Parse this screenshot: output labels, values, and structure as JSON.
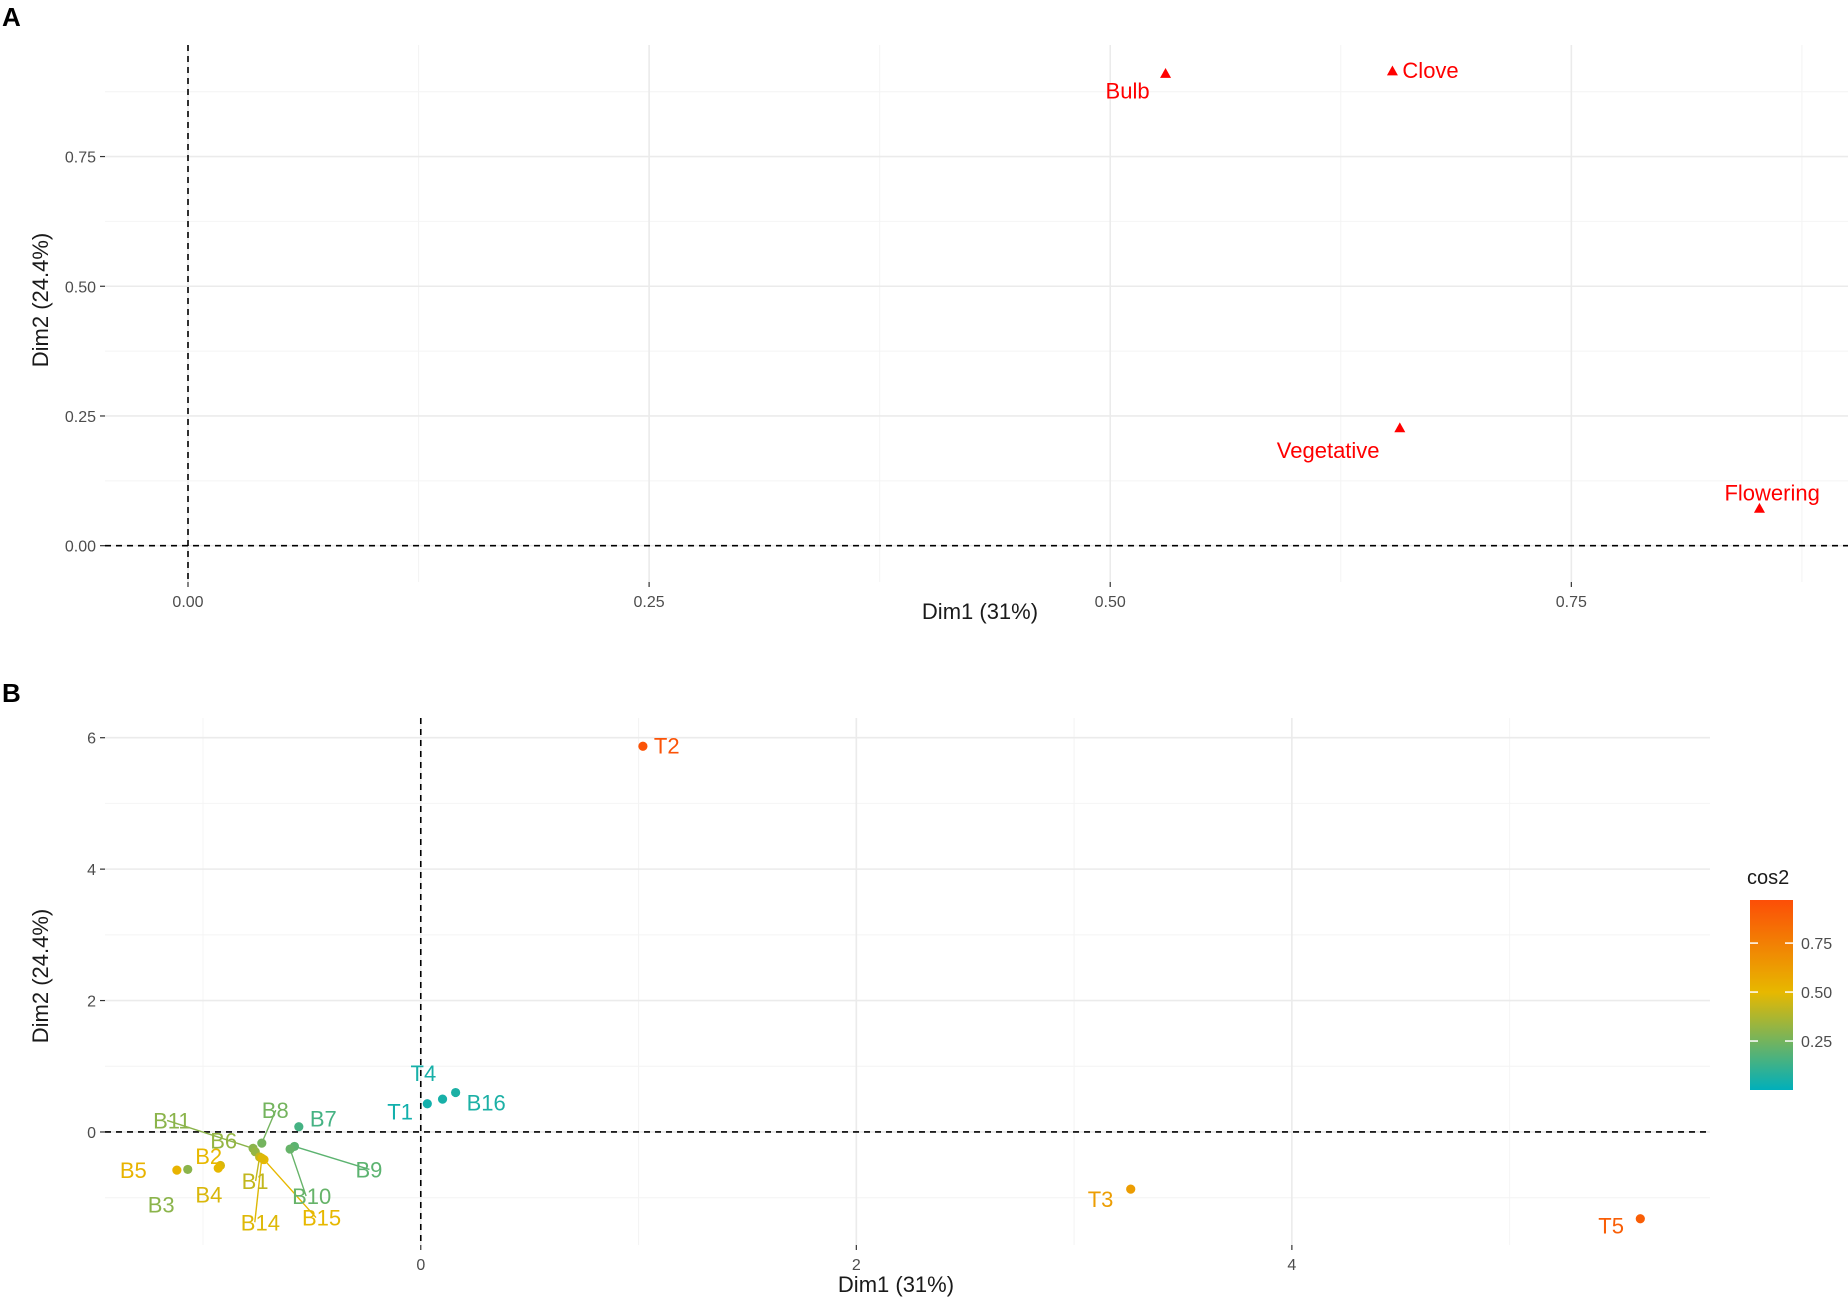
{
  "chart_data": [
    {
      "panel": "A",
      "type": "scatter",
      "title": "",
      "xlabel": "Dim1 (31%)",
      "ylabel": "Dim2 (24.4%)",
      "xlim": [
        -0.045,
        0.9
      ],
      "ylim": [
        -0.07,
        0.965
      ],
      "xticks": [
        0.0,
        0.25,
        0.5,
        0.75
      ],
      "xtick_labels": [
        "0.00",
        "0.25",
        "0.50",
        "0.75"
      ],
      "yticks": [
        0.0,
        0.25,
        0.5,
        0.75
      ],
      "ytick_labels": [
        "0.00",
        "0.25",
        "0.50",
        "0.75"
      ],
      "grid": true,
      "point_color": "#ff0000",
      "marker": "triangle",
      "points": [
        {
          "label": "Bulb",
          "x": 0.53,
          "y": 0.91
        },
        {
          "label": "Clove",
          "x": 0.653,
          "y": 0.915
        },
        {
          "label": "Vegetative",
          "x": 0.657,
          "y": 0.227
        },
        {
          "label": "Flowering",
          "x": 0.852,
          "y": 0.072
        }
      ]
    },
    {
      "panel": "B",
      "type": "scatter",
      "title": "",
      "xlabel": "Dim1 (31%)",
      "ylabel": "Dim2 (24.4%)",
      "xlim": [
        -1.45,
        5.92
      ],
      "ylim": [
        -1.72,
        6.3
      ],
      "xticks": [
        0,
        2,
        4
      ],
      "xtick_labels": [
        "0",
        "2",
        "4"
      ],
      "yticks": [
        0,
        2,
        4,
        6
      ],
      "ytick_labels": [
        "0",
        "2",
        "4",
        "6"
      ],
      "grid": true,
      "color_scale": {
        "title": "cos2",
        "range": [
          0.0,
          0.97
        ],
        "stops": [
          {
            "value": 0.0,
            "color": "#00afbb"
          },
          {
            "value": 0.5,
            "color": "#e7b800"
          },
          {
            "value": 0.97,
            "color": "#fc4e07"
          }
        ],
        "ticks": [
          0.25,
          0.5,
          0.75
        ],
        "tick_labels": [
          "0.25",
          "0.50",
          "0.75"
        ]
      },
      "points": [
        {
          "label": "T2",
          "x": 1.02,
          "y": 5.87,
          "cos2": 0.95
        },
        {
          "label": "T5",
          "x": 5.6,
          "y": -1.32,
          "cos2": 0.9
        },
        {
          "label": "T3",
          "x": 3.26,
          "y": -0.87,
          "cos2": 0.62
        },
        {
          "label": "T4",
          "x": 0.1,
          "y": 0.5,
          "cos2": 0.05
        },
        {
          "label": "T1",
          "x": 0.03,
          "y": 0.43,
          "cos2": 0.04
        },
        {
          "label": "B16",
          "x": 0.16,
          "y": 0.6,
          "cos2": 0.06
        },
        {
          "label": "B7",
          "x": -0.56,
          "y": 0.08,
          "cos2": 0.15
        },
        {
          "label": "B8",
          "x": -0.73,
          "y": -0.17,
          "cos2": 0.25
        },
        {
          "label": "B9",
          "x": -0.58,
          "y": -0.22,
          "cos2": 0.2
        },
        {
          "label": "B10",
          "x": -0.6,
          "y": -0.26,
          "cos2": 0.22
        },
        {
          "label": "B11",
          "x": -0.77,
          "y": -0.25,
          "cos2": 0.3
        },
        {
          "label": "B6",
          "x": -0.76,
          "y": -0.3,
          "cos2": 0.32
        },
        {
          "label": "B1",
          "x": -0.74,
          "y": -0.38,
          "cos2": 0.42
        },
        {
          "label": "B15",
          "x": -0.72,
          "y": -0.42,
          "cos2": 0.5
        },
        {
          "label": "B14",
          "x": -0.73,
          "y": -0.4,
          "cos2": 0.48
        },
        {
          "label": "B4",
          "x": -0.92,
          "y": -0.51,
          "cos2": 0.47
        },
        {
          "label": "B2",
          "x": -0.93,
          "y": -0.55,
          "cos2": 0.5
        },
        {
          "label": "B3",
          "x": -1.07,
          "y": -0.57,
          "cos2": 0.3
        },
        {
          "label": "B5",
          "x": -1.12,
          "y": -0.58,
          "cos2": 0.52
        }
      ]
    }
  ]
}
